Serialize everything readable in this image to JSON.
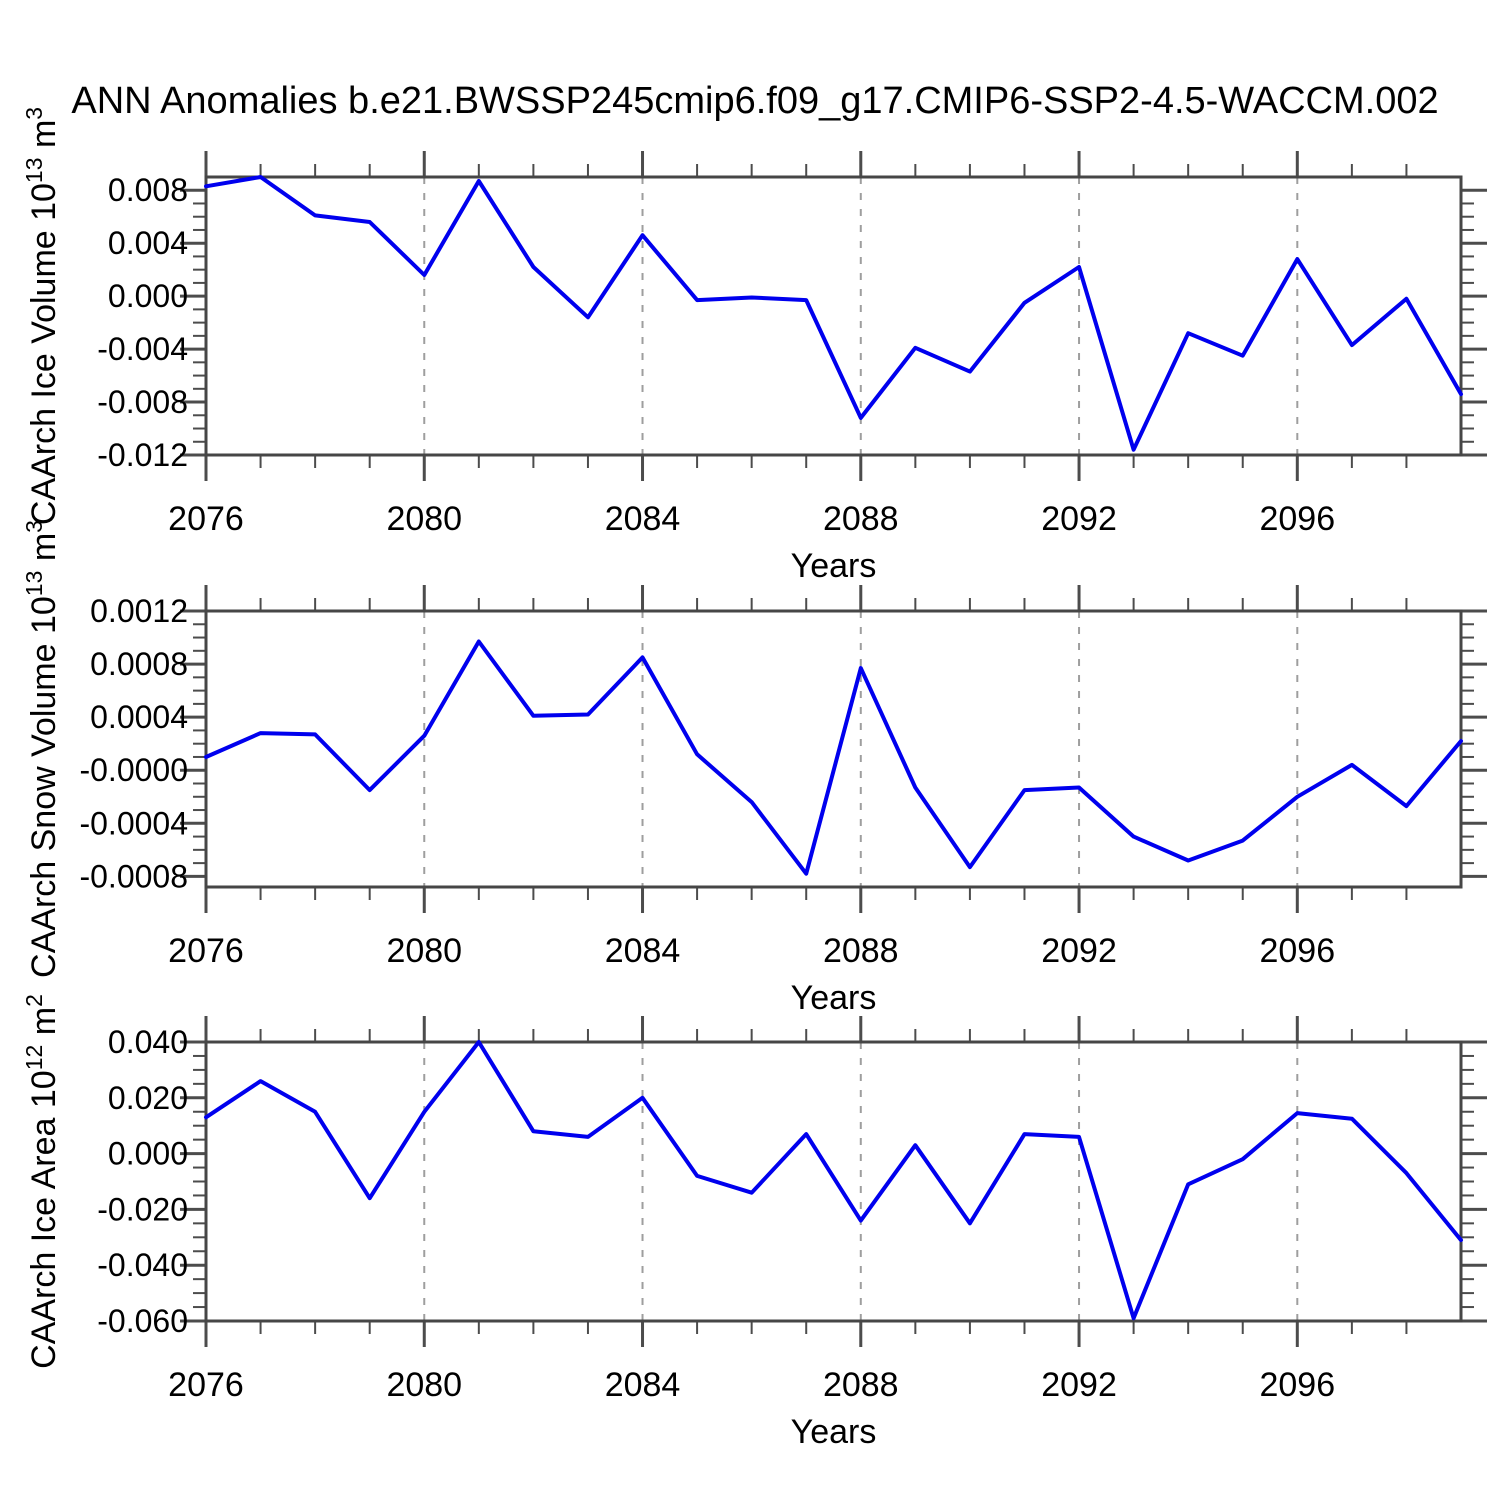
{
  "page": {
    "title": "ANN Anomalies b.e21.BWSSP245cmip6.f09_g17.CMIP6-SSP2-4.5-WACCM.002"
  },
  "colors": {
    "line": "#0000ee",
    "frame": "#464646",
    "tick": "#4c4c4c",
    "gridline": "#9e9e9e",
    "text": "#000000",
    "background": "#ffffff"
  },
  "x": {
    "label": "Years",
    "years": [
      2076,
      2077,
      2078,
      2079,
      2080,
      2081,
      2082,
      2083,
      2084,
      2085,
      2086,
      2087,
      2088,
      2089,
      2090,
      2091,
      2092,
      2093,
      2094,
      2095,
      2096,
      2097,
      2098,
      2099
    ],
    "major_tick_years": [
      2076,
      2080,
      2084,
      2088,
      2092,
      2096
    ],
    "major_tick_labels": [
      "2076",
      "2080",
      "2084",
      "2088",
      "2092",
      "2096"
    ],
    "gridline_years": [
      2080,
      2084,
      2088,
      2092,
      2096
    ]
  },
  "chart_data": [
    {
      "type": "line",
      "name": "caarch-ice-volume",
      "ylabel_text": "CAArch Ice Volume 10^13 m^3",
      "ylabel_parts": [
        {
          "text": "CAArch Ice Volume 10",
          "sup": false
        },
        {
          "text": "13",
          "sup": true
        },
        {
          "text": " m",
          "sup": false
        },
        {
          "text": "3",
          "sup": true
        }
      ],
      "xlabel": "Years",
      "ylim": [
        -0.012,
        0.009
      ],
      "yminor_step": 0.001,
      "ytick_values": [
        0.008,
        0.004,
        0.0,
        -0.004,
        -0.008,
        -0.012
      ],
      "ytick_labels": [
        "0.008",
        "0.004",
        "0.000",
        "-0.004",
        "-0.008",
        "-0.012"
      ],
      "grid": "dashed-vertical",
      "legend": "none",
      "values": [
        0.0083,
        0.009,
        0.0061,
        0.0056,
        0.0016,
        0.0087,
        0.0022,
        -0.0016,
        0.0046,
        -0.0003,
        -0.0001,
        -0.0003,
        -0.0092,
        -0.0039,
        -0.0057,
        -0.0005,
        0.0022,
        -0.0116,
        -0.0028,
        -0.0045,
        0.0028,
        -0.0037,
        -0.0002,
        -0.0074
      ]
    },
    {
      "type": "line",
      "name": "caarch-snow-volume",
      "ylabel_text": "CAArch Snow Volume 10^13 m^3",
      "ylabel_parts": [
        {
          "text": "CAArch Snow Volume 10",
          "sup": false
        },
        {
          "text": "13",
          "sup": true
        },
        {
          "text": " m",
          "sup": false
        },
        {
          "text": "3",
          "sup": true
        }
      ],
      "xlabel": "Years",
      "ylim": [
        -0.00088,
        0.0012
      ],
      "yminor_step": 0.0001,
      "ytick_values": [
        0.0012,
        0.0008,
        0.0004,
        0.0,
        -0.0004,
        -0.0008
      ],
      "ytick_labels": [
        "0.0012",
        "0.0008",
        "0.0004",
        "-0.0000",
        "-0.0004",
        "-0.0008"
      ],
      "grid": "dashed-vertical",
      "legend": "none",
      "values": [
        0.0001,
        0.00028,
        0.00027,
        -0.00015,
        0.00026,
        0.00097,
        0.00041,
        0.00042,
        0.00085,
        0.00012,
        -0.00024,
        -0.00078,
        0.00077,
        -0.00013,
        -0.00073,
        -0.00015,
        -0.00013,
        -0.0005,
        -0.00068,
        -0.00053,
        -0.0002,
        4e-05,
        -0.00027,
        0.00022
      ]
    },
    {
      "type": "line",
      "name": "caarch-ice-area",
      "ylabel_text": "CAArch Ice Area 10^12 m^2",
      "ylabel_parts": [
        {
          "text": "CAArch Ice Area 10",
          "sup": false
        },
        {
          "text": "12",
          "sup": true
        },
        {
          "text": " m",
          "sup": false
        },
        {
          "text": "2",
          "sup": true
        }
      ],
      "xlabel": "Years",
      "ylim": [
        -0.06,
        0.04
      ],
      "yminor_step": 0.005,
      "ytick_values": [
        0.04,
        0.02,
        0.0,
        -0.02,
        -0.04,
        -0.06
      ],
      "ytick_labels": [
        "0.040",
        "0.020",
        "0.000",
        "-0.020",
        "-0.040",
        "-0.060"
      ],
      "grid": "dashed-vertical",
      "legend": "none",
      "values": [
        0.013,
        0.026,
        0.015,
        -0.016,
        0.015,
        0.04,
        0.008,
        0.006,
        0.02,
        -0.008,
        -0.014,
        0.007,
        -0.024,
        0.003,
        -0.025,
        0.007,
        0.006,
        -0.059,
        -0.011,
        -0.002,
        0.0145,
        0.0125,
        -0.007,
        -0.031
      ]
    }
  ]
}
